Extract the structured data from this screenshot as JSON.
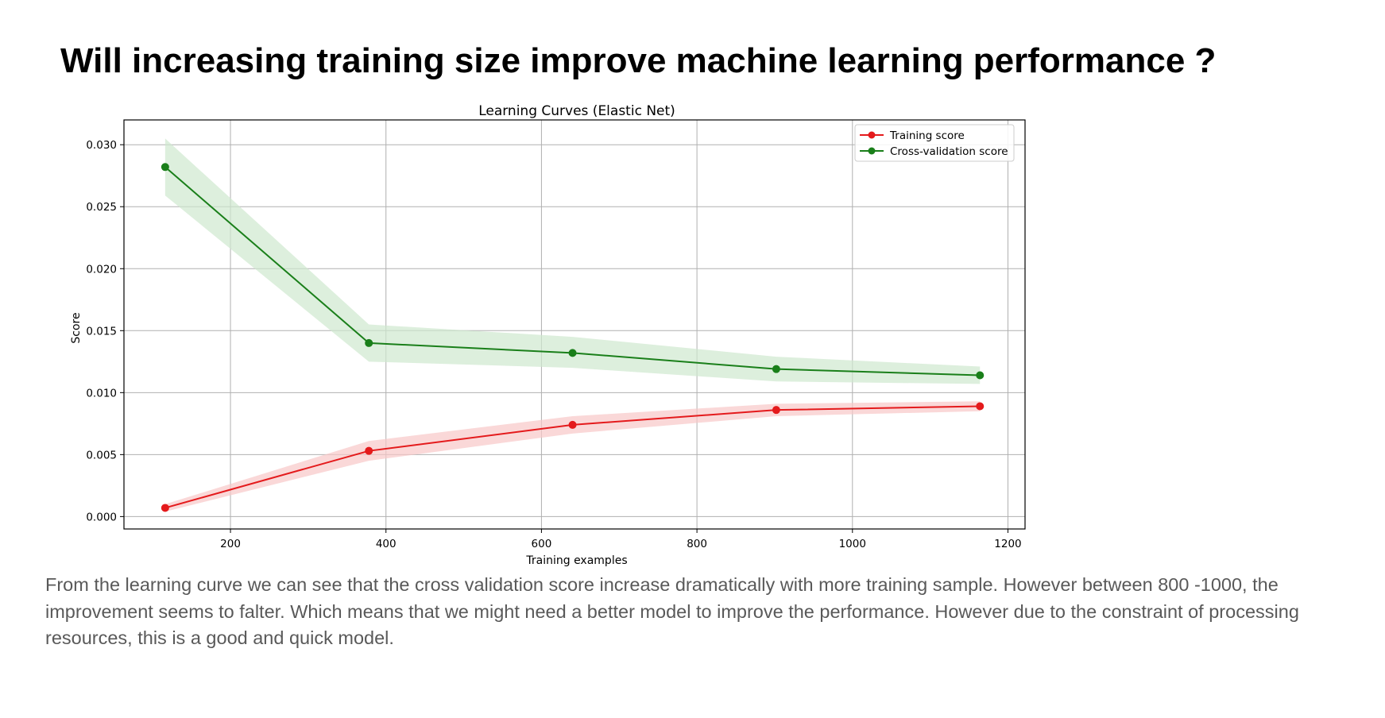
{
  "slide": {
    "title": "Will increasing training size improve machine learning performance ?",
    "caption": "From the learning curve we can see that the cross validation score increase dramatically with more training sample. However between 800 -1000, the improvement seems to falter. Which means that we might need a better model to improve the performance. However due to the constraint of processing resources, this is a good and quick model."
  },
  "chart_data": {
    "type": "line",
    "title": "Learning Curves (Elastic Net)",
    "xlabel": "Training examples",
    "ylabel": "Score",
    "xlim": [
      63,
      1222
    ],
    "ylim": [
      -0.001,
      0.032
    ],
    "xticks": [
      200,
      400,
      600,
      800,
      1000,
      1200
    ],
    "xtick_labels": [
      "200",
      "400",
      "600",
      "800",
      "1000",
      "1200"
    ],
    "yticks": [
      0.0,
      0.005,
      0.01,
      0.015,
      0.02,
      0.025,
      0.03
    ],
    "ytick_labels": [
      "0.000",
      "0.005",
      "0.010",
      "0.015",
      "0.020",
      "0.025",
      "0.030"
    ],
    "grid": true,
    "legend_position": "top-right",
    "x": [
      116,
      378,
      640,
      902,
      1164
    ],
    "series": [
      {
        "name": "Training score",
        "color": "#e41a1c",
        "band_color": "#f8c8c8",
        "values": [
          0.0007,
          0.0053,
          0.0074,
          0.0086,
          0.0089
        ],
        "lower": [
          0.0004,
          0.0045,
          0.0067,
          0.0081,
          0.0085
        ],
        "upper": [
          0.001,
          0.0061,
          0.0081,
          0.0091,
          0.0093
        ]
      },
      {
        "name": "Cross-validation score",
        "color": "#1a7f1a",
        "band_color": "#cfe8cf",
        "values": [
          0.0282,
          0.014,
          0.0132,
          0.0119,
          0.0114
        ],
        "lower": [
          0.0259,
          0.0125,
          0.012,
          0.0109,
          0.0107
        ],
        "upper": [
          0.0305,
          0.0155,
          0.0145,
          0.0129,
          0.0121
        ]
      }
    ]
  }
}
